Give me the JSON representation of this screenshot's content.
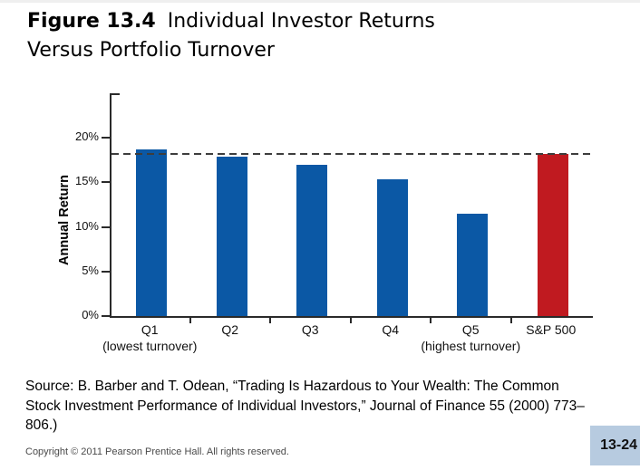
{
  "slide": {
    "title": {
      "label": "Figure 13.4",
      "line1": "Individual Investor Returns",
      "line2": "Versus Portfolio Turnover"
    },
    "source_lines": [
      "Source: B. Barber and T. Odean, “Trading Is Hazardous to Your Wealth: The Common",
      "Stock Investment Performance of Individual Investors,” Journal of Finance 55 (2000) 773–",
      "806.)"
    ],
    "copyright": "Copyright © 2011 Pearson Prentice Hall. All rights reserved.",
    "page_number": "13-24",
    "badge_color": "#b7cbe0"
  },
  "chart_data": {
    "type": "bar",
    "title": "Individual Investor Returns Versus Portfolio Turnover",
    "ylabel": "Annual Return",
    "xlabel": "",
    "categories": [
      "Q1",
      "Q2",
      "Q3",
      "Q4",
      "Q5",
      "S&P 500"
    ],
    "category_sublabels": [
      "(lowest turnover)",
      "",
      "",
      "",
      "(highest turnover)",
      ""
    ],
    "values": [
      18.7,
      17.9,
      17.0,
      15.3,
      11.5,
      18.2
    ],
    "unit": "%",
    "bar_colors": [
      "#0b58a5",
      "#0b58a5",
      "#0b58a5",
      "#0b58a5",
      "#0b58a5",
      "#c01a20"
    ],
    "reference_line": {
      "value": 18.2,
      "style": "dashed",
      "color": "#3d3d3d"
    },
    "y_ticks": [
      {
        "label": "0%",
        "value": 0
      },
      {
        "label": "5%",
        "value": 5
      },
      {
        "label": "10%",
        "value": 10
      },
      {
        "label": "15%",
        "value": 15
      },
      {
        "label": "20%",
        "value": 20
      }
    ],
    "ylim": [
      0,
      25
    ],
    "grid": false,
    "legend": false
  }
}
